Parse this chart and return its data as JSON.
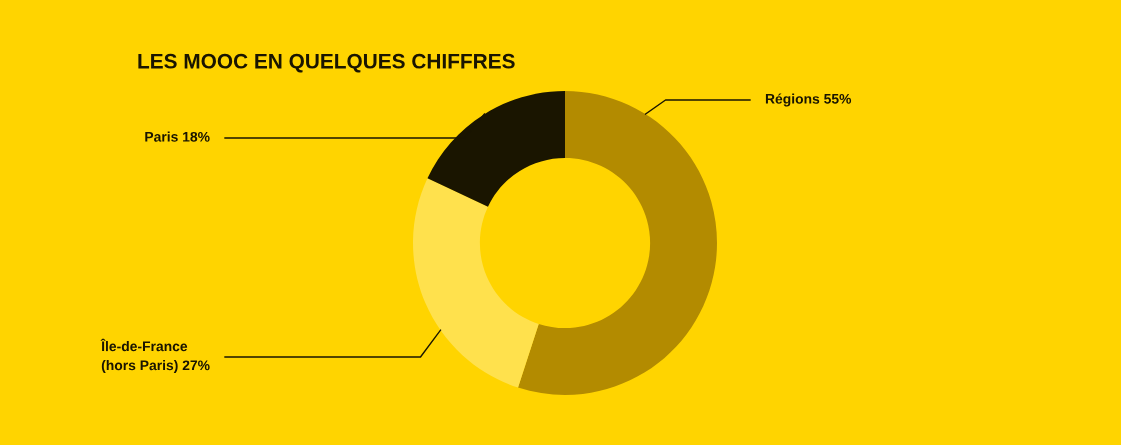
{
  "chart_data": {
    "type": "donut",
    "title": "LES MOOC EN QUELQUES CHIFFRES",
    "categories": [
      "Régions",
      "Île-de-France\n(hors Paris)",
      "Paris"
    ],
    "values": [
      55,
      27,
      18
    ],
    "value_labels": [
      "55%",
      "27%",
      "18%"
    ],
    "colors": [
      "#b38b00",
      "#ffe14d",
      "#1a1500"
    ],
    "legend": false
  }
}
